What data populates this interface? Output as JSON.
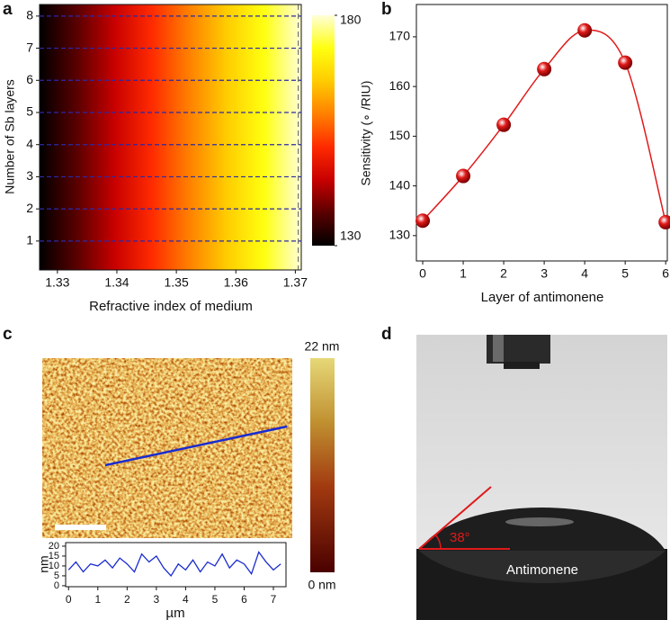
{
  "panel_labels": [
    "a",
    "b",
    "c",
    "d"
  ],
  "chart_data": [
    {
      "type": "heatmap",
      "xlabel": "Refractive index of medium",
      "ylabel": "Number of Sb layers",
      "xlim": [
        1.327,
        1.371
      ],
      "xticks": [
        1.33,
        1.34,
        1.35,
        1.36,
        1.37
      ],
      "ylim": [
        0.1,
        8.36
      ],
      "yticks": [
        1,
        2,
        3,
        4,
        5,
        6,
        7,
        8
      ],
      "grid": true,
      "grid_color": "#2a2aa8",
      "marker_x": 1.3705,
      "colormap": [
        "#000000",
        "#5a0000",
        "#c80000",
        "#ff2a00",
        "#ff8000",
        "#ffcc00",
        "#ffff10",
        "#ffffd8"
      ],
      "colorbar": {
        "lim": [
          130,
          180
        ],
        "ticks": [
          130,
          180
        ]
      }
    },
    {
      "type": "scatter",
      "xlabel": "Layer of antimonene",
      "ylabel": "Sensitivity (∘ /RIU)",
      "x": [
        0,
        1,
        2,
        3,
        4,
        5,
        6
      ],
      "series": [
        {
          "color": "#e01a1a",
          "values": [
            133,
            142,
            152.3,
            163.5,
            171.3,
            164.8,
            132.7
          ]
        }
      ],
      "xlim": [
        -0.156,
        6.04
      ],
      "xticks": [
        0,
        1,
        2,
        3,
        4,
        5,
        6
      ],
      "ylim": [
        124.9,
        176.5
      ],
      "yticks": [
        130,
        140,
        150,
        160,
        170
      ]
    },
    {
      "type": "line",
      "xlabel": "µm",
      "ylabel": "nm",
      "x": [
        0,
        0.25,
        0.5,
        0.75,
        1,
        1.25,
        1.5,
        1.75,
        2,
        2.25,
        2.5,
        2.75,
        3,
        3.25,
        3.5,
        3.75,
        4,
        4.25,
        4.5,
        4.75,
        5,
        5.25,
        5.5,
        5.75,
        6,
        6.25,
        6.5,
        6.75,
        7,
        7.25
      ],
      "series": [
        {
          "color": "#1a2bd0",
          "values": [
            8,
            12,
            7,
            11,
            10,
            13,
            9,
            14,
            11,
            7,
            16,
            12,
            15,
            9,
            5,
            11,
            8,
            13,
            7,
            12,
            10,
            16,
            9,
            13,
            11,
            6,
            17,
            12,
            8,
            11
          ]
        }
      ],
      "xlim": [
        -0.1,
        7.43
      ],
      "xticks": [
        0,
        1,
        2,
        3,
        4,
        5,
        6,
        7
      ],
      "ylim": [
        -0.5,
        21.8
      ],
      "yticks": [
        0,
        5,
        10,
        15,
        20
      ]
    }
  ],
  "afm": {
    "colorbar_labels": [
      "22 nm",
      "0 nm"
    ]
  },
  "photo": {
    "angle_label": "38°",
    "substrate_label": "Antimonene"
  }
}
